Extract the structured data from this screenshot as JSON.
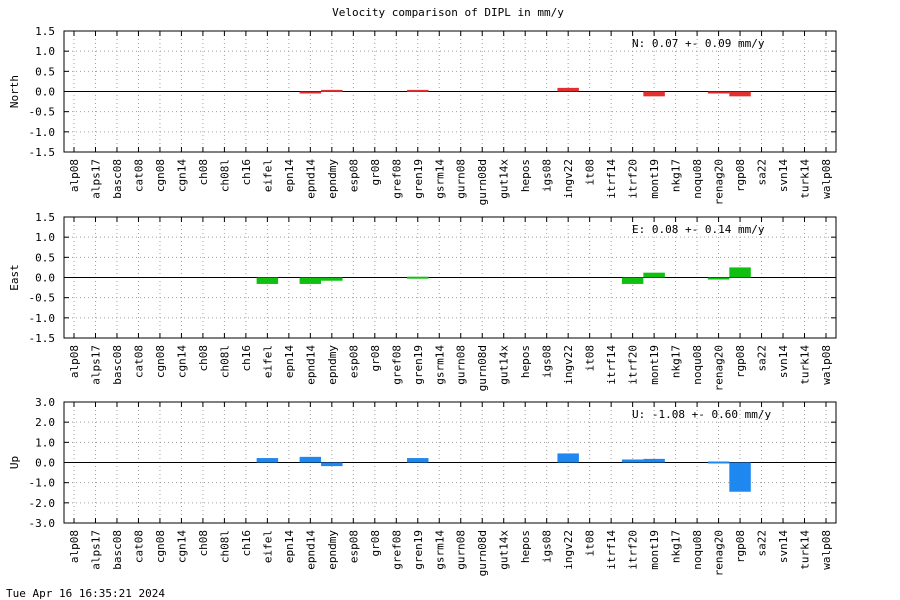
{
  "title": "Velocity comparison of DIPL in mm/y",
  "timestamp": "Tue Apr 16 16:35:21 2024",
  "chart_data": [
    {
      "type": "bar",
      "key": "north",
      "ylabel": "North",
      "color": "#e03030",
      "ylim": [
        -1.5,
        1.5
      ],
      "yticks": [
        "-1.5",
        "-1.0",
        "-0.5",
        "0.0",
        "0.5",
        "1.0",
        "1.5"
      ],
      "annotation": "N:   0.07 +-  0.09 mm/y",
      "categories": [
        "alp08",
        "alps17",
        "basc08",
        "cat08",
        "cgn08",
        "cgn14",
        "ch08",
        "ch08l",
        "ch16",
        "eifel",
        "epn14",
        "epnd14",
        "epndmy",
        "esp08",
        "gr08",
        "gref08",
        "gren19",
        "gsrm14",
        "gurn08",
        "gurn08d",
        "gut14x",
        "hepos",
        "igs08",
        "ingv22",
        "it08",
        "itrf14",
        "itrf20",
        "mont19",
        "nkg17",
        "noqu08",
        "renag20",
        "rgp08",
        "sa22",
        "svn14",
        "turk14",
        "walp08"
      ],
      "values": [
        0,
        0,
        0,
        0,
        0,
        0,
        0,
        0,
        0,
        0,
        0,
        -0.05,
        0.04,
        0,
        0,
        0,
        0.04,
        0,
        0,
        0,
        0,
        0,
        0,
        0.09,
        0,
        0,
        0,
        -0.12,
        0,
        0,
        -0.03,
        -0.12,
        0,
        0,
        0,
        0
      ]
    },
    {
      "type": "bar",
      "key": "east",
      "ylabel": "East",
      "color": "#10c010",
      "ylim": [
        -1.5,
        1.5
      ],
      "yticks": [
        "-1.5",
        "-1.0",
        "-0.5",
        "0.0",
        "0.5",
        "1.0",
        "1.5"
      ],
      "annotation": "E:   0.08 +-  0.14 mm/y",
      "categories": [
        "alp08",
        "alps17",
        "basc08",
        "cat08",
        "cgn08",
        "cgn14",
        "ch08",
        "ch08l",
        "ch16",
        "eifel",
        "epn14",
        "epnd14",
        "epndmy",
        "esp08",
        "gr08",
        "gref08",
        "gren19",
        "gsrm14",
        "gurn08",
        "gurn08d",
        "gut14x",
        "hepos",
        "igs08",
        "ingv22",
        "it08",
        "itrf14",
        "itrf20",
        "mont19",
        "nkg17",
        "noqu08",
        "renag20",
        "rgp08",
        "sa22",
        "svn14",
        "turk14",
        "walp08"
      ],
      "values": [
        0,
        0,
        0,
        0,
        0,
        0,
        0,
        0,
        0,
        -0.16,
        0,
        -0.16,
        -0.08,
        0,
        0,
        0,
        0.02,
        0,
        0,
        0,
        0,
        0,
        0,
        0,
        0,
        0,
        -0.16,
        0.12,
        0,
        0,
        -0.05,
        0.25,
        0,
        0,
        0,
        0
      ]
    },
    {
      "type": "bar",
      "key": "up",
      "ylabel": "Up",
      "color": "#1e88f0",
      "ylim": [
        -3.0,
        3.0
      ],
      "yticks": [
        "-3.0",
        "-2.0",
        "-1.0",
        "0.0",
        "1.0",
        "2.0",
        "3.0"
      ],
      "annotation": "U:  -1.08 +-  0.60 mm/y",
      "categories": [
        "alp08",
        "alps17",
        "basc08",
        "cat08",
        "cgn08",
        "cgn14",
        "ch08",
        "ch08l",
        "ch16",
        "eifel",
        "epn14",
        "epnd14",
        "epndmy",
        "esp08",
        "gr08",
        "gref08",
        "gren19",
        "gsrm14",
        "gurn08",
        "gurn08d",
        "gut14x",
        "hepos",
        "igs08",
        "ingv22",
        "it08",
        "itrf14",
        "itrf20",
        "mont19",
        "nkg17",
        "noqu08",
        "renag20",
        "rgp08",
        "sa22",
        "svn14",
        "turk14",
        "walp08"
      ],
      "values": [
        0,
        0,
        0,
        0,
        0,
        0,
        0,
        0,
        0,
        0.22,
        0,
        0.28,
        -0.18,
        0,
        0,
        0,
        0.22,
        0,
        0,
        0,
        0,
        0,
        0,
        0.45,
        0,
        0,
        0.15,
        0.18,
        0,
        0,
        0.05,
        -1.45,
        0,
        0,
        0,
        0
      ]
    }
  ]
}
